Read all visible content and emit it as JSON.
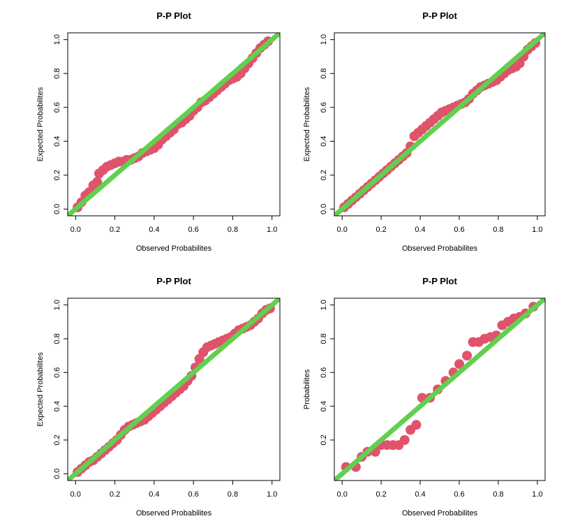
{
  "chart_data": [
    {
      "type": "scatter",
      "title": "P-P Plot",
      "xlabel": "Observed Probabilites",
      "ylabel": "Expected Probabilites",
      "xlim": [
        0,
        1
      ],
      "ylim": [
        0,
        1
      ],
      "xticks": [
        "0.0",
        "0.2",
        "0.4",
        "0.6",
        "0.8",
        "1.0"
      ],
      "yticks": [
        "0.0",
        "0.2",
        "0.4",
        "0.6",
        "0.8",
        "1.0"
      ],
      "point_color": "#DF536B",
      "line_color": "#61D04F",
      "reference_line": {
        "from": [
          0,
          0
        ],
        "to": [
          1,
          1
        ]
      },
      "x": [
        0.01,
        0.03,
        0.05,
        0.07,
        0.09,
        0.11,
        0.12,
        0.14,
        0.16,
        0.18,
        0.2,
        0.22,
        0.24,
        0.26,
        0.28,
        0.3,
        0.32,
        0.34,
        0.36,
        0.38,
        0.4,
        0.42,
        0.44,
        0.46,
        0.48,
        0.5,
        0.52,
        0.54,
        0.56,
        0.58,
        0.6,
        0.62,
        0.64,
        0.66,
        0.68,
        0.7,
        0.72,
        0.74,
        0.76,
        0.78,
        0.8,
        0.82,
        0.84,
        0.86,
        0.88,
        0.9,
        0.92,
        0.94,
        0.96,
        0.98
      ],
      "y": [
        0.01,
        0.04,
        0.08,
        0.1,
        0.14,
        0.16,
        0.21,
        0.23,
        0.25,
        0.26,
        0.27,
        0.28,
        0.28,
        0.29,
        0.29,
        0.3,
        0.31,
        0.33,
        0.34,
        0.35,
        0.36,
        0.38,
        0.41,
        0.43,
        0.45,
        0.47,
        0.5,
        0.51,
        0.53,
        0.55,
        0.58,
        0.6,
        0.63,
        0.64,
        0.66,
        0.68,
        0.7,
        0.72,
        0.74,
        0.76,
        0.77,
        0.78,
        0.8,
        0.83,
        0.86,
        0.89,
        0.92,
        0.95,
        0.97,
        0.99
      ]
    },
    {
      "type": "scatter",
      "title": "P-P Plot",
      "xlabel": "Observed Probabilites",
      "ylabel": "Expected Probabilites",
      "xlim": [
        0,
        1
      ],
      "ylim": [
        0,
        1
      ],
      "xticks": [
        "0.0",
        "0.2",
        "0.4",
        "0.6",
        "0.8",
        "1.0"
      ],
      "yticks": [
        "0.0",
        "0.2",
        "0.4",
        "0.6",
        "0.8",
        "1.0"
      ],
      "point_color": "#DF536B",
      "line_color": "#61D04F",
      "reference_line": {
        "from": [
          0,
          0
        ],
        "to": [
          1,
          1
        ]
      },
      "x": [
        0.01,
        0.03,
        0.05,
        0.07,
        0.09,
        0.11,
        0.13,
        0.15,
        0.17,
        0.19,
        0.21,
        0.23,
        0.25,
        0.27,
        0.29,
        0.31,
        0.33,
        0.35,
        0.37,
        0.39,
        0.41,
        0.43,
        0.45,
        0.47,
        0.49,
        0.51,
        0.53,
        0.55,
        0.57,
        0.59,
        0.61,
        0.63,
        0.65,
        0.67,
        0.69,
        0.71,
        0.73,
        0.75,
        0.77,
        0.79,
        0.81,
        0.83,
        0.85,
        0.87,
        0.89,
        0.91,
        0.93,
        0.95,
        0.97,
        0.99
      ],
      "y": [
        0.01,
        0.03,
        0.05,
        0.07,
        0.09,
        0.11,
        0.13,
        0.15,
        0.17,
        0.19,
        0.21,
        0.23,
        0.25,
        0.27,
        0.29,
        0.31,
        0.33,
        0.37,
        0.43,
        0.45,
        0.47,
        0.49,
        0.51,
        0.53,
        0.55,
        0.57,
        0.58,
        0.59,
        0.6,
        0.61,
        0.62,
        0.63,
        0.65,
        0.68,
        0.7,
        0.72,
        0.73,
        0.74,
        0.75,
        0.76,
        0.78,
        0.8,
        0.82,
        0.83,
        0.84,
        0.86,
        0.9,
        0.94,
        0.96,
        0.98
      ]
    },
    {
      "type": "scatter",
      "title": "P-P Plot",
      "xlabel": "Observed Probabilites",
      "ylabel": "Expected Probabilites",
      "xlim": [
        0,
        1
      ],
      "ylim": [
        0,
        1
      ],
      "xticks": [
        "0.0",
        "0.2",
        "0.4",
        "0.6",
        "0.8",
        "1.0"
      ],
      "yticks": [
        "0.0",
        "0.2",
        "0.4",
        "0.6",
        "0.8",
        "1.0"
      ],
      "point_color": "#DF536B",
      "line_color": "#61D04F",
      "reference_line": {
        "from": [
          0,
          0
        ],
        "to": [
          1,
          1
        ]
      },
      "x": [
        0.01,
        0.03,
        0.05,
        0.07,
        0.09,
        0.11,
        0.13,
        0.15,
        0.17,
        0.19,
        0.21,
        0.23,
        0.25,
        0.27,
        0.29,
        0.31,
        0.33,
        0.35,
        0.37,
        0.39,
        0.41,
        0.43,
        0.45,
        0.47,
        0.49,
        0.51,
        0.53,
        0.55,
        0.57,
        0.59,
        0.61,
        0.63,
        0.65,
        0.67,
        0.69,
        0.71,
        0.73,
        0.75,
        0.77,
        0.79,
        0.81,
        0.83,
        0.85,
        0.87,
        0.89,
        0.91,
        0.93,
        0.95,
        0.97,
        0.99
      ],
      "y": [
        0.01,
        0.03,
        0.05,
        0.07,
        0.08,
        0.1,
        0.12,
        0.14,
        0.16,
        0.18,
        0.2,
        0.23,
        0.26,
        0.28,
        0.29,
        0.3,
        0.31,
        0.32,
        0.34,
        0.36,
        0.38,
        0.4,
        0.42,
        0.44,
        0.46,
        0.48,
        0.5,
        0.52,
        0.55,
        0.58,
        0.63,
        0.68,
        0.72,
        0.75,
        0.76,
        0.77,
        0.78,
        0.79,
        0.8,
        0.81,
        0.83,
        0.85,
        0.86,
        0.87,
        0.88,
        0.9,
        0.92,
        0.95,
        0.97,
        0.98
      ]
    },
    {
      "type": "scatter",
      "title": "P-P Plot",
      "xlabel": "Observed Probabilites",
      "ylabel": "Probabilites",
      "xlim": [
        0,
        1
      ],
      "ylim": [
        0,
        1
      ],
      "xticks": [
        "0.0",
        "0.2",
        "0.4",
        "0.6",
        "0.8",
        "1.0"
      ],
      "yticks": [
        "0.2",
        "0.4",
        "0.6",
        "0.8",
        "1.0"
      ],
      "point_color": "#DF536B",
      "line_color": "#61D04F",
      "reference_line": {
        "from": [
          0,
          0
        ],
        "to": [
          1,
          1
        ]
      },
      "x": [
        0.02,
        0.07,
        0.1,
        0.13,
        0.17,
        0.2,
        0.23,
        0.26,
        0.29,
        0.32,
        0.35,
        0.38,
        0.41,
        0.45,
        0.49,
        0.53,
        0.57,
        0.6,
        0.64,
        0.67,
        0.7,
        0.73,
        0.76,
        0.79,
        0.82,
        0.85,
        0.88,
        0.91,
        0.94,
        0.98
      ],
      "y": [
        0.04,
        0.04,
        0.1,
        0.13,
        0.13,
        0.17,
        0.17,
        0.17,
        0.17,
        0.2,
        0.26,
        0.29,
        0.45,
        0.45,
        0.5,
        0.55,
        0.6,
        0.65,
        0.7,
        0.78,
        0.78,
        0.8,
        0.81,
        0.82,
        0.88,
        0.9,
        0.92,
        0.93,
        0.95,
        0.99
      ]
    }
  ]
}
